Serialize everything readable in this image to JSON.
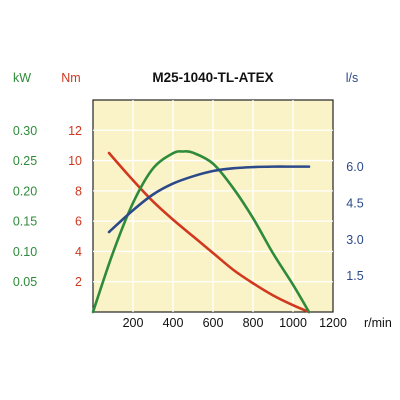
{
  "chart_data": {
    "type": "line",
    "title": "M25-1040-TL-ATEX",
    "x_axis": {
      "unit_label": "r/min",
      "range": [
        0,
        1200
      ],
      "ticks": [
        200,
        400,
        600,
        800,
        1000,
        1200
      ]
    },
    "axes": {
      "kw": {
        "unit_label": "kW",
        "color": "#2e8b3a",
        "range": [
          0,
          0.35
        ],
        "ticks": [
          "0.05",
          "0.10",
          "0.15",
          "0.20",
          "0.25",
          "0.30"
        ],
        "tick_values": [
          0.05,
          0.1,
          0.15,
          0.2,
          0.25,
          0.3
        ]
      },
      "nm": {
        "unit_label": "Nm",
        "color": "#d0381f",
        "range": [
          0,
          14
        ],
        "ticks": [
          "2",
          "4",
          "6",
          "8",
          "10",
          "12"
        ],
        "tick_values": [
          2,
          4,
          6,
          8,
          10,
          12
        ]
      },
      "ls": {
        "unit_label": "l/s",
        "color": "#2c4a8a",
        "range": [
          0,
          8.75
        ],
        "ticks": [
          "1.5",
          "3.0",
          "4.5",
          "6.0"
        ],
        "tick_values": [
          1.5,
          3.0,
          4.5,
          6.0
        ]
      }
    },
    "series": [
      {
        "axis": "nm",
        "color": "#d0381f",
        "x": [
          80,
          200,
          300,
          400,
          500,
          600,
          700,
          800,
          900,
          1000,
          1080
        ],
        "y": [
          10.5,
          8.7,
          7.3,
          6.1,
          5.0,
          3.9,
          2.8,
          1.9,
          1.1,
          0.45,
          0.0
        ]
      },
      {
        "axis": "kw",
        "color": "#2e8b3a",
        "x": [
          0,
          100,
          200,
          300,
          400,
          450,
          500,
          600,
          700,
          800,
          900,
          1000,
          1080
        ],
        "y": [
          0.0,
          0.098,
          0.18,
          0.237,
          0.262,
          0.265,
          0.263,
          0.245,
          0.205,
          0.155,
          0.097,
          0.045,
          0.0
        ]
      },
      {
        "axis": "ls",
        "color": "#2c4a8a",
        "x": [
          80,
          200,
          300,
          400,
          500,
          600,
          700,
          800,
          900,
          1000,
          1080
        ],
        "y": [
          3.3,
          4.2,
          4.85,
          5.3,
          5.6,
          5.82,
          5.93,
          5.98,
          6.0,
          6.0,
          6.0
        ]
      }
    ],
    "grid": true,
    "plot_background": "#fbf3c8"
  }
}
